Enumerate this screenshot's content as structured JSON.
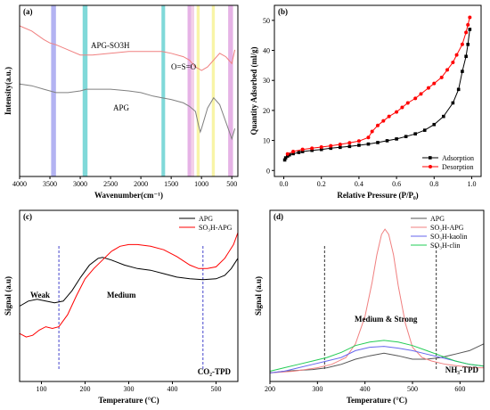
{
  "chart_data": [
    {
      "id": "a",
      "type": "line",
      "panel_label": "(a)",
      "xlabel": "Wavenumber(cm⁻¹)",
      "ylabel": "Intensity(a.u.)",
      "xlim": [
        4000,
        400
      ],
      "x_reversed": true,
      "xticks": [
        4000,
        3500,
        3000,
        2500,
        2000,
        1500,
        1000,
        500
      ],
      "ylim": [
        0,
        100
      ],
      "series": [
        {
          "name": "APG-SO3H",
          "color": "#f08080",
          "x": [
            4000,
            3800,
            3600,
            3500,
            3400,
            3200,
            3000,
            2900,
            2800,
            2500,
            2200,
            2000,
            1800,
            1650,
            1500,
            1300,
            1200,
            1150,
            1100,
            1050,
            1000,
            900,
            800,
            700,
            600,
            500,
            450
          ],
          "y": [
            88,
            85,
            80,
            78,
            77,
            74,
            71,
            71,
            71,
            72,
            73,
            73,
            73,
            73,
            72,
            70,
            68,
            66,
            64,
            63,
            62,
            64,
            68,
            72,
            70,
            66,
            74
          ]
        },
        {
          "name": "APG",
          "color": "#808080",
          "x": [
            4000,
            3800,
            3600,
            3500,
            3400,
            3200,
            3000,
            2900,
            2800,
            2500,
            2200,
            2000,
            1800,
            1650,
            1500,
            1300,
            1200,
            1100,
            1050,
            1020,
            1000,
            950,
            900,
            800,
            700,
            600,
            500,
            450
          ],
          "y": [
            54,
            53,
            51,
            50,
            49,
            49,
            50,
            51,
            51,
            51,
            50,
            49,
            47,
            46,
            45,
            43,
            41,
            38,
            30,
            26,
            28,
            34,
            40,
            46,
            42,
            32,
            22,
            28
          ]
        }
      ],
      "bands": [
        {
          "from": 3480,
          "to": 3400,
          "color": "#9999ee"
        },
        {
          "from": 2960,
          "to": 2880,
          "color": "#55cccc"
        },
        {
          "from": 1660,
          "to": 1600,
          "color": "#55cccc"
        },
        {
          "from": 1230,
          "to": 1170,
          "color": "#dd99dd"
        },
        {
          "from": 1170,
          "to": 1120,
          "color": "#f0c0e0"
        },
        {
          "from": 1080,
          "to": 1030,
          "color": "#f5f08a"
        },
        {
          "from": 830,
          "to": 780,
          "color": "#f5f08a"
        },
        {
          "from": 560,
          "to": 480,
          "color": "#dd99dd"
        }
      ],
      "annotations": [
        "APG-SO3H",
        "O=S=O",
        "APG"
      ]
    },
    {
      "id": "b",
      "type": "line",
      "panel_label": "(b)",
      "xlabel": "Relative Pressure (P/P₀)",
      "ylabel": "Quantity Adsorbed (ml/g)",
      "xlim": [
        -0.05,
        1.05
      ],
      "xticks": [
        0.0,
        0.2,
        0.4,
        0.6,
        0.8,
        1.0
      ],
      "ylim": [
        -2,
        55
      ],
      "yticks": [
        0,
        10,
        20,
        30,
        40,
        50
      ],
      "legend_position": "bottom-right",
      "series": [
        {
          "name": "Adsorption",
          "color": "#000000",
          "marker": "square",
          "x": [
            0.005,
            0.01,
            0.02,
            0.03,
            0.05,
            0.08,
            0.1,
            0.15,
            0.2,
            0.25,
            0.3,
            0.35,
            0.4,
            0.45,
            0.5,
            0.55,
            0.6,
            0.65,
            0.7,
            0.75,
            0.8,
            0.85,
            0.9,
            0.93,
            0.95,
            0.97,
            0.98,
            0.99
          ],
          "y": [
            3.5,
            4.2,
            4.8,
            5.2,
            5.6,
            6.0,
            6.3,
            6.7,
            7.0,
            7.4,
            7.7,
            8.0,
            8.4,
            8.8,
            9.3,
            9.9,
            10.5,
            11.3,
            12.2,
            13.4,
            15.3,
            18.0,
            22.5,
            27.0,
            33.0,
            38.0,
            42.0,
            47.0
          ]
        },
        {
          "name": "Desorption",
          "color": "#ff0000",
          "marker": "circle",
          "x": [
            0.99,
            0.98,
            0.97,
            0.95,
            0.92,
            0.9,
            0.87,
            0.84,
            0.8,
            0.77,
            0.73,
            0.7,
            0.66,
            0.63,
            0.6,
            0.56,
            0.53,
            0.5,
            0.47,
            0.45,
            0.4,
            0.35,
            0.3,
            0.25,
            0.2,
            0.15,
            0.1,
            0.05,
            0.02
          ],
          "y": [
            51.0,
            48.5,
            46.0,
            42.0,
            38.5,
            36.0,
            33.5,
            31.0,
            29.0,
            27.5,
            25.5,
            24.0,
            22.5,
            21.0,
            19.5,
            18.0,
            16.5,
            15.0,
            13.0,
            11.0,
            9.8,
            9.2,
            8.7,
            8.2,
            7.8,
            7.4,
            7.0,
            6.3,
            5.5
          ]
        }
      ]
    },
    {
      "id": "c",
      "type": "line",
      "panel_label": "(c)",
      "xlabel": "Temperature (°C)",
      "ylabel": "Signal (a.u)",
      "xlim": [
        50,
        550
      ],
      "xticks": [
        100,
        200,
        300,
        400,
        500
      ],
      "ylim": [
        0,
        100
      ],
      "legend_position": "top-right",
      "series": [
        {
          "name": "APG",
          "color": "#000000",
          "x": [
            50,
            70,
            90,
            110,
            130,
            150,
            170,
            190,
            210,
            230,
            240,
            260,
            290,
            320,
            350,
            380,
            410,
            440,
            470,
            500,
            520,
            535,
            550
          ],
          "y": [
            44,
            47,
            48,
            47,
            46,
            47,
            53,
            61,
            68,
            72,
            72.5,
            71,
            68,
            66,
            65,
            63,
            61,
            60,
            59.5,
            60,
            62,
            66,
            72
          ]
        },
        {
          "name": "SO₃H-APG",
          "color": "#ff0000",
          "x": [
            50,
            65,
            80,
            95,
            110,
            125,
            140,
            160,
            180,
            200,
            220,
            240,
            260,
            280,
            300,
            320,
            350,
            380,
            410,
            440,
            460,
            480,
            500,
            520,
            540,
            550
          ],
          "y": [
            28,
            26,
            27,
            30,
            32,
            31,
            32,
            39,
            50,
            60,
            66,
            71,
            76,
            79,
            80,
            80,
            79,
            77,
            73,
            68,
            66,
            66,
            67,
            72,
            80,
            87
          ]
        }
      ],
      "vlines": [
        140,
        470
      ],
      "annotations": [
        "Weak",
        "Medium",
        "CO₂-TPD"
      ]
    },
    {
      "id": "d",
      "type": "line",
      "panel_label": "(d)",
      "xlabel": "Temperature (°C)",
      "ylabel": "Signal (a.u)",
      "xlim": [
        200,
        650
      ],
      "xticks": [
        200,
        300,
        400,
        500,
        600
      ],
      "ylim": [
        0,
        100
      ],
      "legend_position": "top-left",
      "series": [
        {
          "name": "APG",
          "color": "#555555",
          "x": [
            200,
            230,
            260,
            290,
            320,
            350,
            380,
            410,
            440,
            470,
            500,
            530,
            560,
            590,
            620,
            650
          ],
          "y": [
            5,
            6,
            6.5,
            7,
            8,
            10,
            13,
            15,
            16.5,
            15,
            13,
            13,
            14,
            16,
            18,
            22
          ]
        },
        {
          "name": "SO₃H-APG",
          "color": "#f08080",
          "x": [
            200,
            250,
            300,
            330,
            360,
            380,
            400,
            415,
            425,
            435,
            442,
            450,
            460,
            470,
            485,
            500,
            520,
            540,
            570,
            600,
            630,
            650
          ],
          "y": [
            5,
            6,
            8,
            10,
            14,
            22,
            38,
            58,
            74,
            86,
            89,
            86,
            74,
            56,
            34,
            20,
            14,
            12,
            10,
            9,
            8,
            8
          ]
        },
        {
          "name": "SO₃H-kaolin",
          "color": "#6666ee",
          "x": [
            200,
            230,
            260,
            290,
            320,
            350,
            380,
            410,
            440,
            470,
            500,
            530,
            560,
            590,
            620,
            650
          ],
          "y": [
            5,
            6,
            8,
            10,
            12,
            14,
            18,
            20,
            20.5,
            19.5,
            18,
            16,
            14,
            12,
            10,
            9
          ]
        },
        {
          "name": "SO₃H-clin",
          "color": "#22cc55",
          "x": [
            200,
            230,
            260,
            290,
            320,
            350,
            380,
            410,
            440,
            470,
            500,
            530,
            560,
            590,
            620,
            650
          ],
          "y": [
            6,
            8,
            10,
            12,
            14,
            17,
            21,
            23,
            24,
            23,
            21,
            18,
            15,
            12,
            10,
            9
          ]
        }
      ],
      "vlines": [
        315,
        550
      ],
      "annotations": [
        "Medium & Strong",
        "NH₃-TPD"
      ]
    }
  ]
}
